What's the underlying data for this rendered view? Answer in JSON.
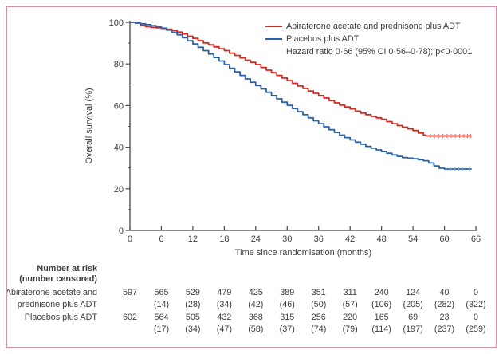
{
  "figure": {
    "border_color": "#d193a7",
    "text_color": "#3e3e3e",
    "axis_color": "#454545"
  },
  "chart_data": {
    "type": "line",
    "km_step": true,
    "title": "",
    "xlabel": "Time since randomisation (months)",
    "ylabel": "Overall survival (%)",
    "xlim": [
      0,
      66
    ],
    "ylim": [
      0,
      100
    ],
    "x_ticks": [
      0,
      6,
      12,
      18,
      24,
      30,
      36,
      42,
      48,
      54,
      60,
      66
    ],
    "y_ticks": [
      0,
      20,
      40,
      60,
      80,
      100
    ],
    "y_minor_ticks": [
      10,
      30,
      50,
      70,
      90
    ],
    "grid": false,
    "legend": {
      "position": "top-right-inside",
      "entries": [
        {
          "label": "Abiraterone acetate and prednisone plus ADT",
          "color": "#d6281e"
        },
        {
          "label": "Placebos plus ADT",
          "color": "#2a63a9"
        }
      ],
      "annotation": "Hazard ratio 0·66 (95% CI 0·56–0·78); p<0·0001"
    },
    "series": [
      {
        "name": "Abiraterone acetate and prednisone plus ADT",
        "color": "#d6281e",
        "censor_color": "#e4766a",
        "points": [
          [
            0,
            100
          ],
          [
            1,
            99.6
          ],
          [
            2,
            98.6
          ],
          [
            3,
            97.9
          ],
          [
            4,
            97.6
          ],
          [
            5,
            97.4
          ],
          [
            6,
            97.1
          ],
          [
            7,
            96.7
          ],
          [
            8,
            96.1
          ],
          [
            9,
            95.3
          ],
          [
            10,
            94.4
          ],
          [
            11,
            93.3
          ],
          [
            12,
            92.3
          ],
          [
            13,
            91.2
          ],
          [
            14,
            90.1
          ],
          [
            15,
            89.2
          ],
          [
            16,
            88.2
          ],
          [
            17,
            87.3
          ],
          [
            18,
            86.4
          ],
          [
            19,
            85.2
          ],
          [
            20,
            84.1
          ],
          [
            21,
            82.9
          ],
          [
            22,
            81.8
          ],
          [
            23,
            80.8
          ],
          [
            24,
            79.7
          ],
          [
            25,
            78.3
          ],
          [
            26,
            77.0
          ],
          [
            27,
            75.8
          ],
          [
            28,
            74.5
          ],
          [
            29,
            73.2
          ],
          [
            30,
            72.0
          ],
          [
            31,
            70.7
          ],
          [
            32,
            69.4
          ],
          [
            33,
            68.2
          ],
          [
            34,
            67.0
          ],
          [
            35,
            65.9
          ],
          [
            36,
            64.8
          ],
          [
            37,
            63.6
          ],
          [
            38,
            62.4
          ],
          [
            39,
            61.3
          ],
          [
            40,
            60.2
          ],
          [
            41,
            59.3
          ],
          [
            42,
            58.4
          ],
          [
            43,
            57.3
          ],
          [
            44,
            56.4
          ],
          [
            45,
            55.6
          ],
          [
            46,
            54.8
          ],
          [
            47,
            54.1
          ],
          [
            48,
            53.4
          ],
          [
            49,
            52.3
          ],
          [
            50,
            51.3
          ],
          [
            51,
            50.4
          ],
          [
            52,
            49.6
          ],
          [
            53,
            48.8
          ],
          [
            54,
            48.0
          ],
          [
            55,
            46.8
          ],
          [
            56,
            45.8
          ],
          [
            56.5,
            45.4
          ],
          [
            65.2,
            45.4
          ]
        ],
        "censor_ticks": [
          [
            57.3,
            45.4
          ],
          [
            58.1,
            45.4
          ],
          [
            58.9,
            45.4
          ],
          [
            59.7,
            45.4
          ],
          [
            60.5,
            45.4
          ],
          [
            61.3,
            45.4
          ],
          [
            62.1,
            45.4
          ],
          [
            62.9,
            45.4
          ],
          [
            63.7,
            45.4
          ],
          [
            64.4,
            45.4
          ],
          [
            65.0,
            45.4
          ]
        ]
      },
      {
        "name": "Placebos plus ADT",
        "color": "#2a63a9",
        "censor_color": "#7fa9d6",
        "points": [
          [
            0,
            100
          ],
          [
            1,
            99.7
          ],
          [
            2,
            99.3
          ],
          [
            3,
            98.9
          ],
          [
            4,
            98.4
          ],
          [
            5,
            97.9
          ],
          [
            6,
            97.2
          ],
          [
            7,
            96.3
          ],
          [
            8,
            95.2
          ],
          [
            9,
            94.0
          ],
          [
            10,
            92.6
          ],
          [
            11,
            91.1
          ],
          [
            12,
            89.6
          ],
          [
            13,
            88.0
          ],
          [
            14,
            86.4
          ],
          [
            15,
            84.8
          ],
          [
            16,
            83.1
          ],
          [
            17,
            81.4
          ],
          [
            18,
            79.7
          ],
          [
            19,
            77.9
          ],
          [
            20,
            76.2
          ],
          [
            21,
            74.5
          ],
          [
            22,
            72.8
          ],
          [
            23,
            71.2
          ],
          [
            24,
            69.6
          ],
          [
            25,
            68.0
          ],
          [
            26,
            66.4
          ],
          [
            27,
            64.8
          ],
          [
            28,
            63.2
          ],
          [
            29,
            61.6
          ],
          [
            30,
            60.1
          ],
          [
            31,
            58.6
          ],
          [
            32,
            57.1
          ],
          [
            33,
            55.6
          ],
          [
            34,
            54.1
          ],
          [
            35,
            52.7
          ],
          [
            36,
            51.3
          ],
          [
            37,
            49.8
          ],
          [
            38,
            48.4
          ],
          [
            39,
            47.1
          ],
          [
            40,
            45.8
          ],
          [
            41,
            44.6
          ],
          [
            42,
            43.5
          ],
          [
            43,
            42.4
          ],
          [
            44,
            41.4
          ],
          [
            45,
            40.4
          ],
          [
            46,
            39.5
          ],
          [
            47,
            38.7
          ],
          [
            48,
            37.9
          ],
          [
            49,
            37.1
          ],
          [
            50,
            36.3
          ],
          [
            51,
            35.6
          ],
          [
            52,
            35.0
          ],
          [
            53,
            34.7
          ],
          [
            54,
            34.4
          ],
          [
            55,
            34.0
          ],
          [
            56,
            33.5
          ],
          [
            57,
            32.4
          ],
          [
            58,
            31.0
          ],
          [
            59,
            29.9
          ],
          [
            60,
            29.5
          ],
          [
            65.2,
            29.5
          ]
        ],
        "censor_ticks": [
          [
            60.3,
            29.5
          ],
          [
            61.1,
            29.5
          ],
          [
            61.9,
            29.5
          ],
          [
            62.7,
            29.5
          ],
          [
            63.4,
            29.5
          ],
          [
            64.1,
            29.5
          ],
          [
            64.8,
            29.5
          ]
        ]
      }
    ]
  },
  "risk_table": {
    "header_lines": [
      "Number at risk",
      "(number censored)"
    ],
    "columns_months": [
      0,
      6,
      12,
      18,
      24,
      30,
      36,
      42,
      48,
      54,
      60,
      66
    ],
    "rows": [
      {
        "label_lines": [
          "Abiraterone acetate and",
          "prednisone plus ADT"
        ],
        "at_risk": [
          597,
          565,
          529,
          479,
          425,
          389,
          351,
          311,
          240,
          124,
          40,
          0
        ],
        "censored": [
          null,
          14,
          28,
          34,
          42,
          46,
          50,
          57,
          106,
          205,
          282,
          322
        ]
      },
      {
        "label_lines": [
          "Placebos plus ADT"
        ],
        "at_risk": [
          602,
          564,
          505,
          432,
          368,
          315,
          256,
          220,
          165,
          69,
          23,
          0
        ],
        "censored": [
          null,
          17,
          34,
          47,
          58,
          37,
          74,
          79,
          114,
          197,
          237,
          259
        ]
      }
    ]
  }
}
